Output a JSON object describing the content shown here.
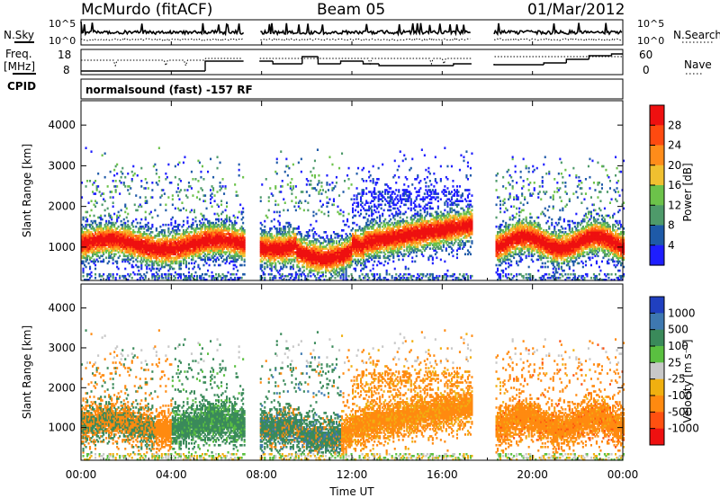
{
  "header": {
    "station": "McMurdo (fitACF)",
    "beam": "Beam 05",
    "date": "01/Mar/2012"
  },
  "left_labels": {
    "nsky": "N.Sky",
    "freq_line1": "Freq.",
    "freq_line2": "[MHz]",
    "cpid": "CPID"
  },
  "right_labels": {
    "nsearch": "N.Search",
    "nave": "Nave"
  },
  "noise_axis": {
    "ticks_left": [
      "10^5",
      "10^0"
    ],
    "ticks_right": [
      "10^5",
      "10^0"
    ]
  },
  "freq_axis": {
    "ticks_left": [
      "18",
      "8"
    ],
    "ticks_right": [
      "60",
      "0"
    ]
  },
  "cpid_text": "normalsound (fast) -157 RF",
  "chart_data": [
    {
      "type": "heatmap",
      "quantity": "power",
      "ylabel": "Slant Range [km]",
      "xlabel": "Time UT",
      "y_ticks": [
        "1000",
        "2000",
        "3000",
        "4000"
      ],
      "x_ticks": [
        "00:00",
        "04:00",
        "08:00",
        "12:00",
        "16:00",
        "20:00",
        "00:00"
      ],
      "xlim_hours": [
        0,
        24
      ],
      "ylim_km": [
        180,
        4600
      ],
      "data_gaps_hours": [
        [
          7.2,
          7.9
        ],
        [
          17.3,
          18.3
        ]
      ],
      "colorbar": {
        "label": "Power [dB]",
        "ticks": [
          "4",
          "8",
          "12",
          "16",
          "20",
          "24",
          "28"
        ],
        "colors": [
          "#1e1eff",
          "#1e5aa8",
          "#4e9a6a",
          "#6cc24a",
          "#f0c030",
          "#ff8c1a",
          "#ff4a10",
          "#ee1010"
        ]
      }
    },
    {
      "type": "heatmap",
      "quantity": "velocity",
      "ylabel": "Slant Range [km]",
      "xlabel": "Time UT",
      "y_ticks": [
        "1000",
        "2000",
        "3000",
        "4000"
      ],
      "x_ticks": [
        "00:00",
        "04:00",
        "08:00",
        "12:00",
        "16:00",
        "20:00",
        "00:00"
      ],
      "colorbar": {
        "label": "Velocity [m s⁻¹]",
        "ticks": [
          "1000",
          "500",
          "100",
          "25",
          "-25",
          "-100",
          "-500",
          "-1000"
        ],
        "colors": [
          "#2040c0",
          "#3e78b0",
          "#3a8a5a",
          "#5ac040",
          "#c8c8c8",
          "#f0b010",
          "#ff8a10",
          "#ff5010",
          "#ee1010"
        ]
      }
    }
  ]
}
